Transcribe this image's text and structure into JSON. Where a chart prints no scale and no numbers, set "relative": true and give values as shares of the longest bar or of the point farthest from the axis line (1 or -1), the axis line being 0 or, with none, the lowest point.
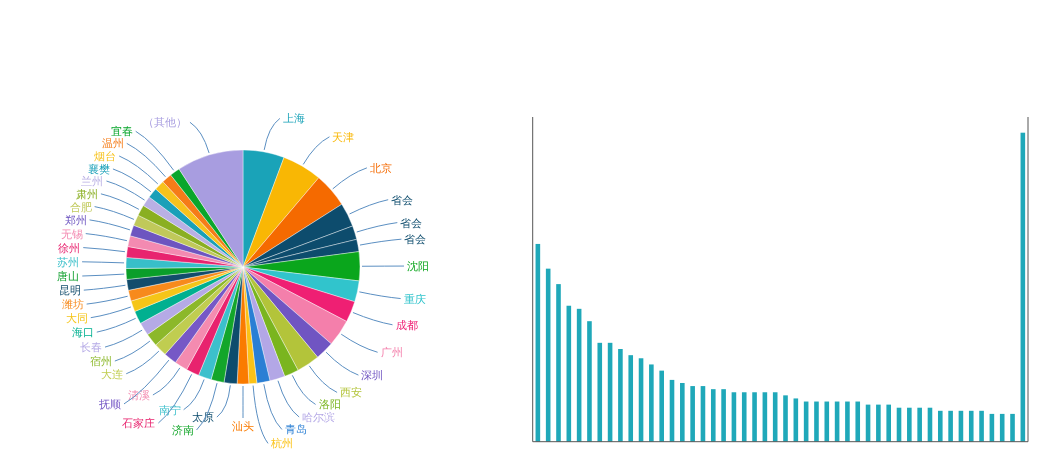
{
  "chart_data": [
    {
      "type": "pie",
      "categories": [
        "上海",
        "天津",
        "北京",
        "省会",
        "省会",
        "省会",
        "沈阳",
        "重庆",
        "成都",
        "广州",
        "深圳",
        "西安",
        "洛阳",
        "哈尔滨",
        "青岛",
        "杭州",
        "汕头",
        "太原",
        "济南",
        "南宁",
        "石家庄",
        "清溪",
        "抚顺",
        "大连",
        "宿州",
        "长春",
        "海口",
        "大同",
        "潍坊",
        "昆明",
        "唐山",
        "苏州",
        "徐州",
        "无锡",
        "郑州",
        "合肥",
        "肃州",
        "兰州",
        "襄樊",
        "烟台",
        "温州",
        "宜春",
        "（其他）"
      ],
      "values": [
        5.7,
        5.5,
        4.8,
        3.3,
        1.9,
        1.7,
        4.0,
        2.9,
        2.9,
        3.7,
        2.6,
        3.2,
        2.0,
        2.1,
        1.8,
        1.1,
        1.6,
        1.8,
        1.8,
        1.8,
        1.8,
        1.8,
        1.8,
        1.8,
        1.8,
        1.8,
        1.8,
        1.5,
        1.5,
        1.5,
        1.5,
        1.5,
        1.5,
        1.5,
        1.5,
        1.5,
        1.5,
        1.4,
        1.4,
        1.4,
        1.4,
        1.4,
        9.2
      ],
      "colors": [
        "#1aa3b8",
        "#f9b704",
        "#f56a00",
        "#0d4c6d",
        "#0d4c6d",
        "#0d4c6d",
        "#0aa61c",
        "#31c4cc",
        "#ef1f73",
        "#f47fab",
        "#7055c2",
        "#b3c43a",
        "#7ab51f",
        "#b3a7e6",
        "#2a7fd4",
        "#fbc216",
        "#fa7b00",
        "#0d4c6d",
        "#13a62a",
        "#3cc0cc",
        "#e8236e",
        "#f48bb0",
        "#7658c6",
        "#c0cd50",
        "#8cb82a",
        "#b5aae6",
        "#00b090",
        "#f5c518",
        "#f78a1c",
        "#124c6c",
        "#0a9e2a",
        "#38bfc9",
        "#e8246f",
        "#f38ab1",
        "#6d55c0",
        "#c0c95a",
        "#8aaf22",
        "#b9b0e4",
        "#1aa0b8",
        "#f7c21c",
        "#f57c18",
        "#0aa62c",
        "#a89de0"
      ]
    },
    {
      "type": "bar",
      "relative": true,
      "color": "#1fa8b9",
      "categories": [
        null,
        null,
        null,
        null,
        null,
        null,
        null,
        null,
        null,
        null,
        null,
        null,
        null,
        null,
        null,
        null,
        null,
        null,
        null,
        null,
        null,
        null,
        null,
        null,
        null,
        null,
        null,
        null,
        null,
        null,
        null,
        null,
        null,
        null,
        null,
        null,
        null,
        null,
        null,
        null,
        null,
        null,
        null,
        null,
        null,
        null,
        null,
        null
      ],
      "values": [
        0.64,
        0.56,
        0.51,
        0.44,
        0.43,
        0.39,
        0.32,
        0.32,
        0.3,
        0.28,
        0.27,
        0.25,
        0.23,
        0.2,
        0.19,
        0.18,
        0.18,
        0.17,
        0.17,
        0.16,
        0.16,
        0.16,
        0.16,
        0.16,
        0.15,
        0.14,
        0.13,
        0.13,
        0.13,
        0.13,
        0.13,
        0.13,
        0.12,
        0.12,
        0.12,
        0.11,
        0.11,
        0.11,
        0.11,
        0.1,
        0.1,
        0.1,
        0.1,
        0.1,
        0.09,
        0.09,
        0.09,
        1
      ]
    }
  ]
}
